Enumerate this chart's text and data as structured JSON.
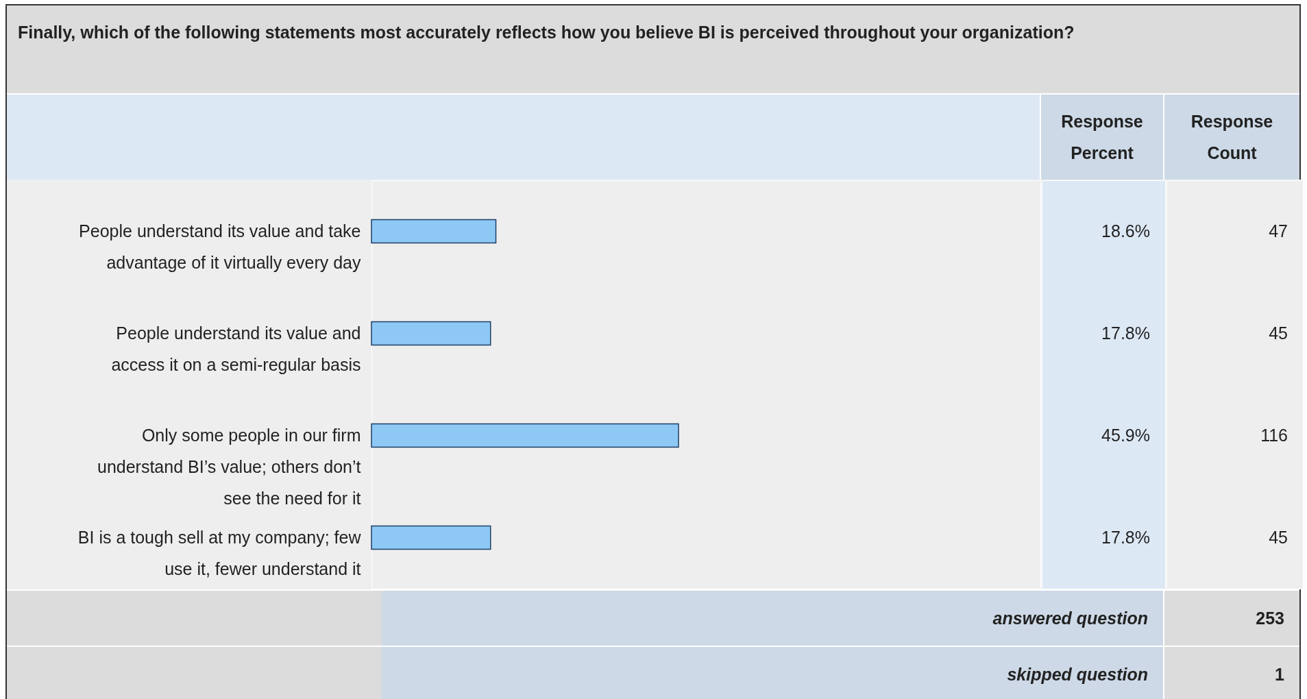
{
  "chart_data": {
    "type": "bar",
    "orientation": "horizontal",
    "title": "Finally, which of the following statements most accurately reflects how you believe BI is perceived throughout your organization?",
    "categories": [
      "People understand its value and take advantage of it virtually every day",
      "People understand its value and access it on a semi-regular basis",
      "Only some people in our firm understand BI’s value; others don’t see the need for it",
      "BI is a tough sell at my company; few use it, fewer understand it"
    ],
    "values": [
      18.6,
      17.8,
      45.9,
      17.8
    ],
    "value_labels": [
      "18.6%",
      "17.8%",
      "45.9%",
      "17.8%"
    ],
    "color": "#8ec8f5",
    "xlim": [
      0,
      100
    ],
    "annotations": [
      "Response Percent",
      "Response Count",
      "47",
      "45",
      "116",
      "45",
      "answered question",
      "253",
      "skipped question",
      "1"
    ]
  }
}
